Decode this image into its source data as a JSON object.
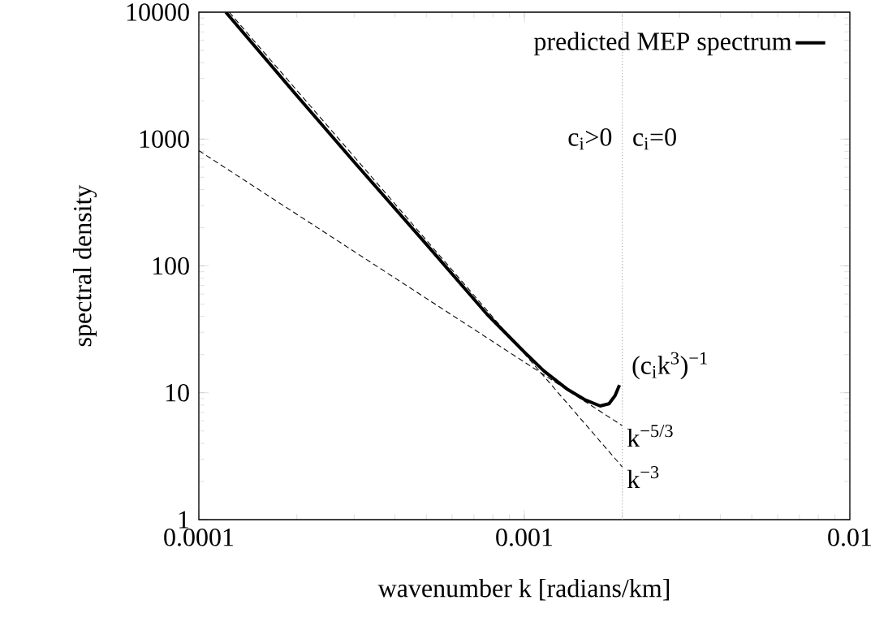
{
  "chart_data": {
    "type": "line",
    "xlabel": "wavenumber k [radians/km]",
    "ylabel": "spectral density",
    "log": "xy",
    "xlim": [
      0.0001,
      0.01
    ],
    "ylim": [
      1,
      10000
    ],
    "xticks": [
      0.0001,
      0.001,
      0.01
    ],
    "yticks": [
      1,
      10,
      100,
      1000,
      10000
    ],
    "grid": false,
    "legend": "top right",
    "marker": "none",
    "series": [
      {
        "name": "predicted MEP spectrum",
        "color": "#000000",
        "line_style": "solid",
        "x": [
          0.000121,
          0.0002,
          0.0003,
          0.0005,
          0.000768,
          0.00102,
          0.00115,
          0.00136,
          0.00153,
          0.00171,
          0.00182,
          0.0019,
          0.00196
        ],
        "values": [
          10000,
          2200,
          660,
          148,
          41.6,
          19.9,
          14.8,
          10.6,
          8.85,
          7.87,
          8.2,
          9.5,
          11.5
        ]
      },
      {
        "name": "k$^{−3}$",
        "color": "#000000",
        "line_style": "dashed",
        "x": [
          0.000124,
          0.002
        ],
        "values": [
          10000,
          2.6
        ]
      },
      {
        "name": "k$^{−5/3}$",
        "color": "#000000",
        "line_style": "dashed",
        "x": [
          0.0001,
          0.002
        ],
        "values": [
          810,
          5.5
        ]
      }
    ],
    "ref_lines": [
      {
        "axis": "x",
        "value": 0.002,
        "color": "#999999",
        "line_style": "dotted"
      }
    ],
    "annotations": [
      "c$_{i}$>0",
      "c$_{i}$=0",
      "(c$_{i}$k$^{3}$)$^{−1}$"
    ]
  }
}
